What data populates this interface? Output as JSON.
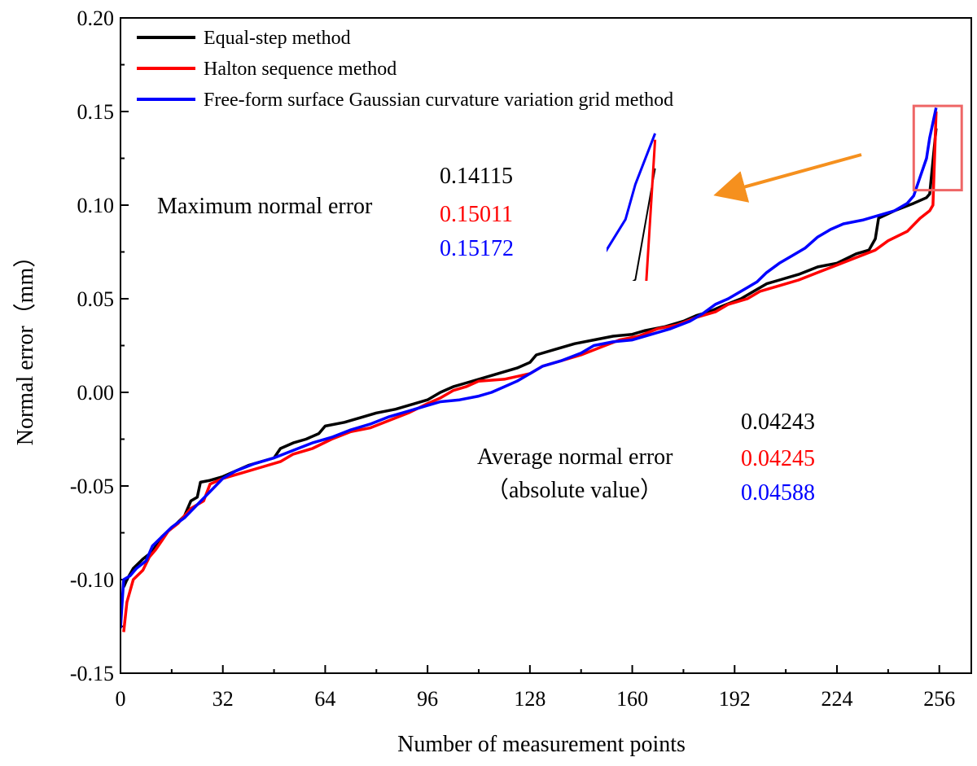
{
  "chart_data": {
    "type": "line",
    "title": "",
    "xlabel": "Number of measurement points",
    "ylabel": "Normal error（mm）",
    "xlim": [
      0,
      266
    ],
    "ylim": [
      -0.15,
      0.2
    ],
    "x_ticks": [
      "0",
      "32",
      "64",
      "96",
      "128",
      "160",
      "192",
      "224",
      "256"
    ],
    "y_ticks": [
      "-0.15",
      "-0.10",
      "-0.05",
      "0.00",
      "0.05",
      "0.10",
      "0.15",
      "0.20"
    ],
    "legend_position": "top-left",
    "series": [
      {
        "name": "Equal-step method",
        "color": "#000000",
        "points": [
          [
            1,
            -0.104
          ],
          [
            2,
            -0.1
          ],
          [
            4,
            -0.094
          ],
          [
            7,
            -0.089
          ],
          [
            10,
            -0.085
          ],
          [
            13,
            -0.077
          ],
          [
            17,
            -0.071
          ],
          [
            20,
            -0.066
          ],
          [
            22,
            -0.058
          ],
          [
            24,
            -0.056
          ],
          [
            25,
            -0.048
          ],
          [
            28,
            -0.047
          ],
          [
            32,
            -0.045
          ],
          [
            36,
            -0.042
          ],
          [
            40,
            -0.039
          ],
          [
            44,
            -0.037
          ],
          [
            48,
            -0.035
          ],
          [
            50,
            -0.03
          ],
          [
            54,
            -0.027
          ],
          [
            58,
            -0.025
          ],
          [
            62,
            -0.022
          ],
          [
            64,
            -0.018
          ],
          [
            70,
            -0.016
          ],
          [
            76,
            -0.013
          ],
          [
            80,
            -0.011
          ],
          [
            86,
            -0.009
          ],
          [
            90,
            -0.007
          ],
          [
            96,
            -0.004
          ],
          [
            100,
            0.0
          ],
          [
            104,
            0.003
          ],
          [
            108,
            0.005
          ],
          [
            112,
            0.007
          ],
          [
            116,
            0.009
          ],
          [
            120,
            0.011
          ],
          [
            124,
            0.013
          ],
          [
            128,
            0.016
          ],
          [
            130,
            0.02
          ],
          [
            136,
            0.023
          ],
          [
            142,
            0.026
          ],
          [
            148,
            0.028
          ],
          [
            154,
            0.03
          ],
          [
            160,
            0.031
          ],
          [
            164,
            0.033
          ],
          [
            170,
            0.035
          ],
          [
            176,
            0.038
          ],
          [
            180,
            0.041
          ],
          [
            184,
            0.043
          ],
          [
            188,
            0.046
          ],
          [
            194,
            0.05
          ],
          [
            198,
            0.054
          ],
          [
            202,
            0.058
          ],
          [
            206,
            0.06
          ],
          [
            212,
            0.063
          ],
          [
            218,
            0.067
          ],
          [
            224,
            0.069
          ],
          [
            230,
            0.074
          ],
          [
            234,
            0.076
          ],
          [
            236,
            0.082
          ],
          [
            237,
            0.093
          ],
          [
            242,
            0.097
          ],
          [
            248,
            0.101
          ],
          [
            252,
            0.104
          ],
          [
            253,
            0.106
          ],
          [
            255,
            0.141
          ]
        ]
      },
      {
        "name": "Halton sequence method",
        "color": "#ff0000",
        "points": [
          [
            1,
            -0.128
          ],
          [
            2,
            -0.112
          ],
          [
            4,
            -0.1
          ],
          [
            7,
            -0.095
          ],
          [
            9,
            -0.088
          ],
          [
            11,
            -0.084
          ],
          [
            13,
            -0.079
          ],
          [
            15,
            -0.074
          ],
          [
            18,
            -0.07
          ],
          [
            22,
            -0.062
          ],
          [
            26,
            -0.058
          ],
          [
            28,
            -0.049
          ],
          [
            32,
            -0.046
          ],
          [
            38,
            -0.043
          ],
          [
            44,
            -0.04
          ],
          [
            50,
            -0.037
          ],
          [
            54,
            -0.033
          ],
          [
            60,
            -0.03
          ],
          [
            66,
            -0.025
          ],
          [
            72,
            -0.021
          ],
          [
            78,
            -0.019
          ],
          [
            84,
            -0.015
          ],
          [
            90,
            -0.011
          ],
          [
            96,
            -0.006
          ],
          [
            100,
            -0.003
          ],
          [
            104,
            0.001
          ],
          [
            108,
            0.003
          ],
          [
            112,
            0.006
          ],
          [
            120,
            0.007
          ],
          [
            128,
            0.01
          ],
          [
            132,
            0.014
          ],
          [
            138,
            0.017
          ],
          [
            144,
            0.02
          ],
          [
            150,
            0.024
          ],
          [
            156,
            0.028
          ],
          [
            162,
            0.03
          ],
          [
            168,
            0.034
          ],
          [
            174,
            0.036
          ],
          [
            180,
            0.04
          ],
          [
            186,
            0.043
          ],
          [
            190,
            0.047
          ],
          [
            196,
            0.05
          ],
          [
            200,
            0.054
          ],
          [
            206,
            0.057
          ],
          [
            212,
            0.06
          ],
          [
            218,
            0.064
          ],
          [
            224,
            0.068
          ],
          [
            230,
            0.072
          ],
          [
            236,
            0.076
          ],
          [
            240,
            0.081
          ],
          [
            246,
            0.086
          ],
          [
            250,
            0.093
          ],
          [
            253,
            0.097
          ],
          [
            254,
            0.1
          ],
          [
            255,
            0.15
          ]
        ]
      },
      {
        "name": "Free-form surface Gaussian curvature variation grid method",
        "color": "#0000ff",
        "points": [
          [
            0,
            -0.126
          ],
          [
            1,
            -0.1
          ],
          [
            3,
            -0.098
          ],
          [
            5,
            -0.094
          ],
          [
            8,
            -0.09
          ],
          [
            10,
            -0.082
          ],
          [
            13,
            -0.077
          ],
          [
            16,
            -0.072
          ],
          [
            20,
            -0.067
          ],
          [
            24,
            -0.06
          ],
          [
            28,
            -0.053
          ],
          [
            32,
            -0.046
          ],
          [
            36,
            -0.042
          ],
          [
            42,
            -0.038
          ],
          [
            48,
            -0.035
          ],
          [
            54,
            -0.031
          ],
          [
            60,
            -0.027
          ],
          [
            66,
            -0.024
          ],
          [
            72,
            -0.02
          ],
          [
            78,
            -0.017
          ],
          [
            84,
            -0.013
          ],
          [
            90,
            -0.01
          ],
          [
            96,
            -0.007
          ],
          [
            100,
            -0.005
          ],
          [
            106,
            -0.004
          ],
          [
            112,
            -0.002
          ],
          [
            116,
            0.0
          ],
          [
            120,
            0.003
          ],
          [
            124,
            0.006
          ],
          [
            128,
            0.01
          ],
          [
            132,
            0.014
          ],
          [
            138,
            0.017
          ],
          [
            144,
            0.021
          ],
          [
            148,
            0.025
          ],
          [
            154,
            0.027
          ],
          [
            160,
            0.028
          ],
          [
            166,
            0.031
          ],
          [
            172,
            0.034
          ],
          [
            178,
            0.038
          ],
          [
            182,
            0.042
          ],
          [
            186,
            0.047
          ],
          [
            190,
            0.05
          ],
          [
            196,
            0.056
          ],
          [
            199,
            0.059
          ],
          [
            202,
            0.064
          ],
          [
            206,
            0.069
          ],
          [
            210,
            0.073
          ],
          [
            214,
            0.077
          ],
          [
            218,
            0.083
          ],
          [
            222,
            0.087
          ],
          [
            226,
            0.09
          ],
          [
            232,
            0.092
          ],
          [
            238,
            0.095
          ],
          [
            242,
            0.097
          ],
          [
            246,
            0.101
          ],
          [
            248,
            0.105
          ],
          [
            250,
            0.115
          ],
          [
            252,
            0.125
          ],
          [
            253,
            0.136
          ],
          [
            255,
            0.152
          ]
        ]
      }
    ],
    "highlight_box": {
      "x_range": [
        248,
        263
      ],
      "y_range": [
        0.108,
        0.153
      ],
      "color": "#ee6666"
    },
    "arrow_color": "#f5901e",
    "annotations": {
      "max": {
        "label": "Maximum normal error",
        "values": [
          "0.14115",
          "0.15011",
          "0.15172"
        ]
      },
      "avg": {
        "label": "Average normal error",
        "sublabel": "（absolute value）",
        "values": [
          "0.04243",
          "0.04245",
          "0.04588"
        ]
      }
    }
  }
}
